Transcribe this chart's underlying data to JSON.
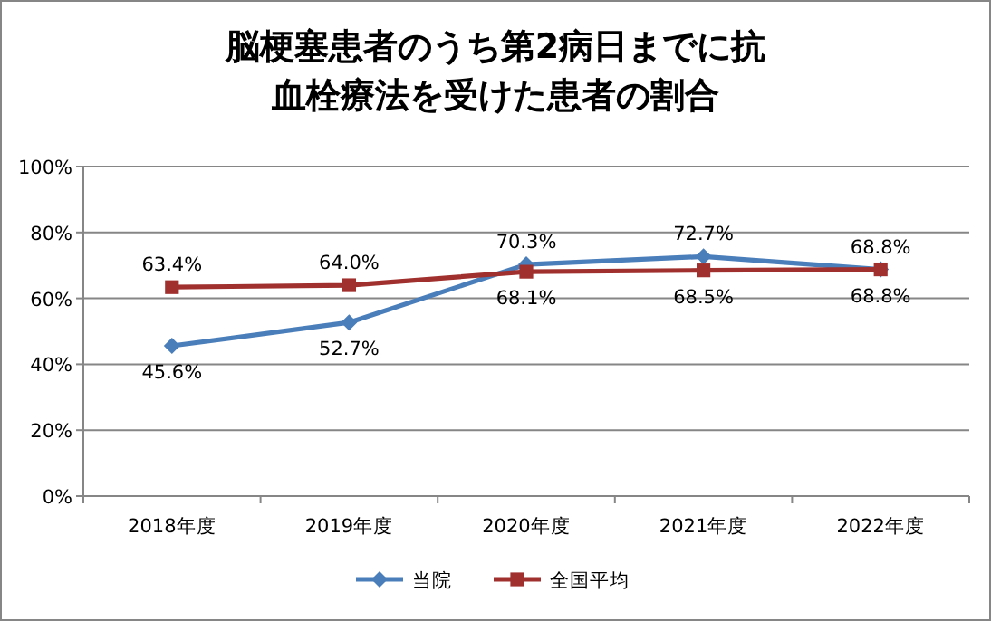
{
  "chart_data": {
    "type": "line",
    "title": "脳梗塞患者のうち第2病日までに抗血栓療法を受けた患者の割合",
    "categories": [
      "2018年度",
      "2019年度",
      "2020年度",
      "2021年度",
      "2022年度"
    ],
    "series": [
      {
        "name": "当院",
        "color": "#4a7ebb",
        "marker": "diamond",
        "values": [
          45.6,
          52.7,
          70.3,
          72.7,
          68.8
        ],
        "value_labels": [
          "45.6%",
          "52.7%",
          "70.3%",
          "72.7%",
          "68.8%"
        ]
      },
      {
        "name": "全国平均",
        "color": "#a0302d",
        "marker": "square",
        "values": [
          63.4,
          64.0,
          68.1,
          68.5,
          68.8
        ],
        "value_labels": [
          "63.4%",
          "64.0%",
          "68.1%",
          "68.5%",
          "68.8%"
        ]
      }
    ],
    "ylim": [
      0,
      100
    ],
    "yticks": [
      {
        "value": 0,
        "label": "0%"
      },
      {
        "value": 20,
        "label": "20%"
      },
      {
        "value": 40,
        "label": "40%"
      },
      {
        "value": 60,
        "label": "60%"
      },
      {
        "value": 80,
        "label": "80%"
      },
      {
        "value": 100,
        "label": "100%"
      }
    ],
    "grid": "y",
    "legend": "bottom",
    "line_style": "solid"
  }
}
